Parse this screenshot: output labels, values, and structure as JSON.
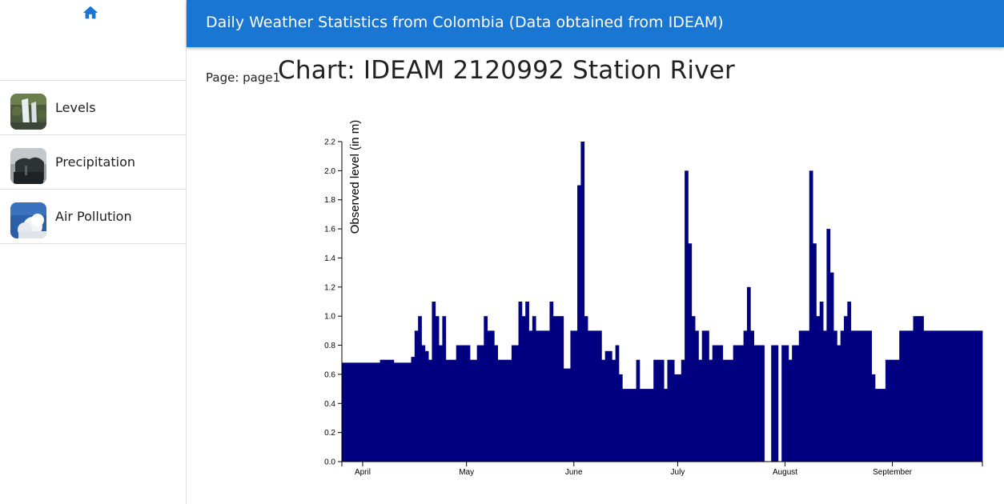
{
  "sidebar": {
    "home_icon": "home-icon",
    "items": [
      {
        "label": "Levels",
        "icon": "waterfall-thumbnail"
      },
      {
        "label": "Precipitation",
        "icon": "rain-clouds-thumbnail"
      },
      {
        "label": "Air Pollution",
        "icon": "clouds-sky-thumbnail"
      }
    ]
  },
  "header": {
    "title": "Daily Weather Statistics from Colombia (Data obtained from IDEAM)"
  },
  "main": {
    "page_label": "Page: page1",
    "chart_title": "Chart: IDEAM 2120992 Station River"
  },
  "colors": {
    "header_bg": "#1976d2",
    "bar_fill": "#000080",
    "home_icon": "#1976d2"
  },
  "chart_data": {
    "type": "bar",
    "title": "Chart: IDEAM 2120992 Station River",
    "xlabel": "",
    "ylabel": "Observed level (in m)",
    "ylim": [
      0,
      2.2
    ],
    "yticks": [
      "0.0",
      "0.2",
      "0.4",
      "0.6",
      "0.8",
      "1.0",
      "1.2",
      "1.4",
      "1.6",
      "1.8",
      "2.0",
      "2.2"
    ],
    "xticks": [
      "April",
      "May",
      "June",
      "July",
      "August",
      "September"
    ],
    "grid": false,
    "x_start": "2019-03-26",
    "x_end": "2019-09-27",
    "categories": [
      "2019-03-26",
      "2019-03-27",
      "2019-03-28",
      "2019-03-29",
      "2019-03-30",
      "2019-03-31",
      "2019-04-01",
      "2019-04-02",
      "2019-04-03",
      "2019-04-04",
      "2019-04-05",
      "2019-04-06",
      "2019-04-07",
      "2019-04-08",
      "2019-04-09",
      "2019-04-10",
      "2019-04-11",
      "2019-04-12",
      "2019-04-13",
      "2019-04-14",
      "2019-04-15",
      "2019-04-16",
      "2019-04-17",
      "2019-04-18",
      "2019-04-19",
      "2019-04-20",
      "2019-04-21",
      "2019-04-22",
      "2019-04-23",
      "2019-04-24",
      "2019-04-25",
      "2019-04-26",
      "2019-04-27",
      "2019-04-28",
      "2019-04-29",
      "2019-04-30",
      "2019-05-01",
      "2019-05-02",
      "2019-05-03",
      "2019-05-04",
      "2019-05-05",
      "2019-05-06",
      "2019-05-07",
      "2019-05-08",
      "2019-05-09",
      "2019-05-10",
      "2019-05-11",
      "2019-05-12",
      "2019-05-13",
      "2019-05-14",
      "2019-05-15",
      "2019-05-16",
      "2019-05-17",
      "2019-05-18",
      "2019-05-19",
      "2019-05-20",
      "2019-05-21",
      "2019-05-22",
      "2019-05-23",
      "2019-05-24",
      "2019-05-25",
      "2019-05-26",
      "2019-05-27",
      "2019-05-28",
      "2019-05-29",
      "2019-05-30",
      "2019-05-31",
      "2019-06-01",
      "2019-06-02",
      "2019-06-03",
      "2019-06-04",
      "2019-06-05",
      "2019-06-06",
      "2019-06-07",
      "2019-06-08",
      "2019-06-09",
      "2019-06-10",
      "2019-06-11",
      "2019-06-12",
      "2019-06-13",
      "2019-06-14",
      "2019-06-15",
      "2019-06-16",
      "2019-06-17",
      "2019-06-18",
      "2019-06-19",
      "2019-06-20",
      "2019-06-21",
      "2019-06-22",
      "2019-06-23",
      "2019-06-24",
      "2019-06-25",
      "2019-06-26",
      "2019-06-27",
      "2019-06-28",
      "2019-06-29",
      "2019-06-30",
      "2019-07-01",
      "2019-07-02",
      "2019-07-03",
      "2019-07-04",
      "2019-07-05",
      "2019-07-06",
      "2019-07-07",
      "2019-07-08",
      "2019-07-09",
      "2019-07-10",
      "2019-07-11",
      "2019-07-12",
      "2019-07-13",
      "2019-07-14",
      "2019-07-15",
      "2019-07-16",
      "2019-07-17",
      "2019-07-18",
      "2019-07-19",
      "2019-07-20",
      "2019-07-21",
      "2019-07-22",
      "2019-07-23",
      "2019-07-24",
      "2019-07-25",
      "2019-07-26",
      "2019-07-27",
      "2019-07-28",
      "2019-07-29",
      "2019-07-30",
      "2019-07-31",
      "2019-08-01",
      "2019-08-02",
      "2019-08-03",
      "2019-08-04",
      "2019-08-05",
      "2019-08-06",
      "2019-08-07",
      "2019-08-08",
      "2019-08-09",
      "2019-08-10",
      "2019-08-11",
      "2019-08-12",
      "2019-08-13",
      "2019-08-14",
      "2019-08-15",
      "2019-08-16",
      "2019-08-17",
      "2019-08-18",
      "2019-08-19",
      "2019-08-20",
      "2019-08-21",
      "2019-08-22",
      "2019-08-23",
      "2019-08-24",
      "2019-08-25",
      "2019-08-26",
      "2019-08-27",
      "2019-08-28",
      "2019-08-29",
      "2019-08-30",
      "2019-08-31",
      "2019-09-01",
      "2019-09-02",
      "2019-09-03",
      "2019-09-04",
      "2019-09-05",
      "2019-09-06",
      "2019-09-07",
      "2019-09-08",
      "2019-09-09",
      "2019-09-10",
      "2019-09-11",
      "2019-09-12",
      "2019-09-13",
      "2019-09-14",
      "2019-09-15",
      "2019-09-16",
      "2019-09-17",
      "2019-09-18",
      "2019-09-19",
      "2019-09-20",
      "2019-09-21",
      "2019-09-22",
      "2019-09-23",
      "2019-09-24",
      "2019-09-25",
      "2019-09-26"
    ],
    "values": [
      0.68,
      0.68,
      0.68,
      0.68,
      0.68,
      0.68,
      0.68,
      0.68,
      0.68,
      0.68,
      0.68,
      0.7,
      0.7,
      0.7,
      0.7,
      0.68,
      0.68,
      0.68,
      0.68,
      0.68,
      0.72,
      0.9,
      1.0,
      0.8,
      0.76,
      0.7,
      1.1,
      1.0,
      0.8,
      1.0,
      0.7,
      0.7,
      0.7,
      0.8,
      0.8,
      0.8,
      0.8,
      0.7,
      0.7,
      0.8,
      0.8,
      1.0,
      0.9,
      0.9,
      0.8,
      0.7,
      0.7,
      0.7,
      0.7,
      0.8,
      0.8,
      1.1,
      1.0,
      1.1,
      0.9,
      1.0,
      0.9,
      0.9,
      0.9,
      0.9,
      1.1,
      1.0,
      1.0,
      1.0,
      0.64,
      0.64,
      0.9,
      0.9,
      1.9,
      2.2,
      1.0,
      0.9,
      0.9,
      0.9,
      0.9,
      0.7,
      0.76,
      0.76,
      0.7,
      0.8,
      0.6,
      0.5,
      0.5,
      0.5,
      0.5,
      0.7,
      0.5,
      0.5,
      0.5,
      0.5,
      0.7,
      0.7,
      0.7,
      0.5,
      0.7,
      0.7,
      0.6,
      0.6,
      0.7,
      2.0,
      1.5,
      1.0,
      0.9,
      0.7,
      0.9,
      0.9,
      0.7,
      0.8,
      0.8,
      0.8,
      0.7,
      0.7,
      0.7,
      0.8,
      0.8,
      0.8,
      0.9,
      1.2,
      0.9,
      0.8,
      0.8,
      0.8,
      0.0,
      0.0,
      0.8,
      0.8,
      0.0,
      0.8,
      0.8,
      0.7,
      0.8,
      0.8,
      0.9,
      0.9,
      0.9,
      2.0,
      1.5,
      1.0,
      1.1,
      0.9,
      1.6,
      1.3,
      0.9,
      0.8,
      0.9,
      1.0,
      1.1,
      0.9,
      0.9,
      0.9,
      0.9,
      0.9,
      0.9,
      0.6,
      0.5,
      0.5,
      0.5,
      0.7,
      0.7,
      0.7,
      0.7,
      0.9,
      0.9,
      0.9,
      0.9,
      1.0,
      1.0,
      1.0,
      0.9,
      0.9,
      0.9,
      0.9,
      0.9,
      0.9,
      0.9,
      0.9,
      0.9,
      0.9,
      0.9,
      0.9,
      0.9,
      0.9,
      0.9,
      0.9,
      0.9
    ]
  }
}
